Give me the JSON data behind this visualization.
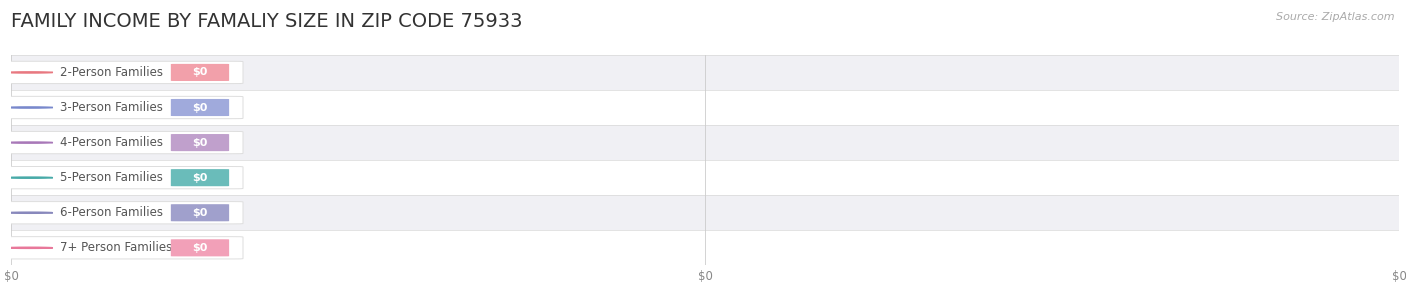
{
  "title": "FAMILY INCOME BY FAMALIY SIZE IN ZIP CODE 75933",
  "source_text": "Source: ZipAtlas.com",
  "categories": [
    "2-Person Families",
    "3-Person Families",
    "4-Person Families",
    "5-Person Families",
    "6-Person Families",
    "7+ Person Families"
  ],
  "values": [
    0,
    0,
    0,
    0,
    0,
    0
  ],
  "bar_colors": [
    "#f2a0aa",
    "#a0aadc",
    "#c0a0cc",
    "#6abcba",
    "#a0a0cc",
    "#f2a0b8"
  ],
  "dot_colors": [
    "#e87880",
    "#7888cc",
    "#a878b8",
    "#48aaa8",
    "#8888bc",
    "#e8789a"
  ],
  "row_bg_colors": [
    "#f0f0f4",
    "#ffffff",
    "#f0f0f4",
    "#ffffff",
    "#f0f0f4",
    "#ffffff"
  ],
  "background_color": "#ffffff",
  "xlim": [
    0,
    1
  ],
  "title_fontsize": 14,
  "label_fontsize": 8.5,
  "value_fontsize": 8,
  "tick_fontsize": 8.5,
  "bar_height": 0.62,
  "fig_width": 14.06,
  "fig_height": 3.05
}
